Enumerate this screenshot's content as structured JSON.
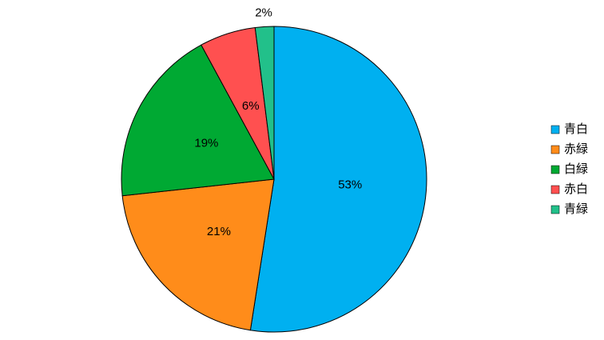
{
  "chart_data": {
    "type": "pie",
    "categories": [
      "青白",
      "赤緑",
      "白緑",
      "赤白",
      "青緑"
    ],
    "values": [
      53,
      21,
      19,
      6,
      2
    ],
    "value_labels": [
      "53%",
      "21%",
      "19%",
      "6%",
      "2%"
    ],
    "colors": [
      "#00b0f0",
      "#ff8c1a",
      "#00a933",
      "#ff5050",
      "#22c08a"
    ],
    "legend": "right"
  }
}
